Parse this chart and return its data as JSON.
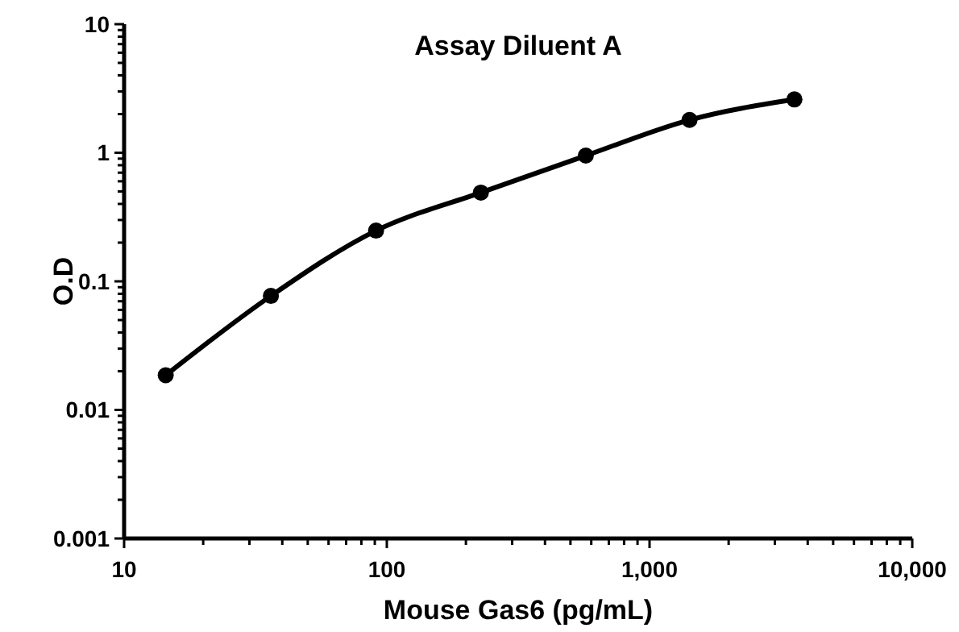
{
  "chart_data": {
    "type": "line",
    "title": "Assay Diluent A",
    "xlabel": "Mouse Gas6 (pg/mL)",
    "ylabel": "O.D",
    "log": "xy",
    "marker": "circle",
    "line_style": "solid",
    "x": [
      14.4,
      36.2,
      91,
      228,
      572,
      1420,
      3560
    ],
    "series": [
      {
        "color": "#000000",
        "values": [
          0.0186,
          0.077,
          0.248,
          0.49,
          0.95,
          1.8,
          2.6
        ]
      }
    ],
    "xlim": [
      10,
      10000
    ],
    "xticks": [
      10,
      {
        "value": 20,
        "label": null
      },
      {
        "value": 30,
        "label": null
      },
      {
        "value": 40,
        "label": null
      },
      {
        "value": 50,
        "label": null
      },
      {
        "value": 60,
        "label": null
      },
      {
        "value": 70,
        "label": null
      },
      {
        "value": 80,
        "label": null
      },
      {
        "value": 90,
        "label": null
      },
      100,
      {
        "value": 200,
        "label": null
      },
      {
        "value": 300,
        "label": null
      },
      {
        "value": 400,
        "label": null
      },
      {
        "value": 500,
        "label": null
      },
      {
        "value": 600,
        "label": null
      },
      {
        "value": 700,
        "label": null
      },
      {
        "value": 800,
        "label": null
      },
      {
        "value": 900,
        "label": null
      },
      {
        "value": 1000,
        "label": "1,000"
      },
      {
        "value": 2000,
        "label": null
      },
      {
        "value": 3000,
        "label": null
      },
      {
        "value": 4000,
        "label": null
      },
      {
        "value": 5000,
        "label": null
      },
      {
        "value": 6000,
        "label": null
      },
      {
        "value": 7000,
        "label": null
      },
      {
        "value": 8000,
        "label": null
      },
      {
        "value": 9000,
        "label": null
      },
      {
        "value": 10000,
        "label": "10,000"
      }
    ],
    "ylim": [
      0.001,
      10
    ],
    "yticks": [
      0.001,
      {
        "value": 0.002,
        "label": null
      },
      {
        "value": 0.003,
        "label": null
      },
      {
        "value": 0.004,
        "label": null
      },
      {
        "value": 0.005,
        "label": null
      },
      {
        "value": 0.006,
        "label": null
      },
      {
        "value": 0.007,
        "label": null
      },
      {
        "value": 0.008,
        "label": null
      },
      {
        "value": 0.009,
        "label": null
      },
      0.01,
      {
        "value": 0.02,
        "label": null
      },
      {
        "value": 0.03,
        "label": null
      },
      {
        "value": 0.04,
        "label": null
      },
      {
        "value": 0.05,
        "label": null
      },
      {
        "value": 0.06,
        "label": null
      },
      {
        "value": 0.07,
        "label": null
      },
      {
        "value": 0.08,
        "label": null
      },
      {
        "value": 0.09,
        "label": null
      },
      0.1,
      {
        "value": 0.2,
        "label": null
      },
      {
        "value": 0.3,
        "label": null
      },
      {
        "value": 0.4,
        "label": null
      },
      {
        "value": 0.5,
        "label": null
      },
      {
        "value": 0.6,
        "label": null
      },
      {
        "value": 0.7,
        "label": null
      },
      {
        "value": 0.8,
        "label": null
      },
      {
        "value": 0.9,
        "label": null
      },
      1,
      {
        "value": 2,
        "label": null
      },
      {
        "value": 3,
        "label": null
      },
      {
        "value": 4,
        "label": null
      },
      {
        "value": 5,
        "label": null
      },
      {
        "value": 6,
        "label": null
      },
      {
        "value": 7,
        "label": null
      },
      {
        "value": 8,
        "label": null
      },
      {
        "value": 9,
        "label": null
      },
      10
    ]
  }
}
